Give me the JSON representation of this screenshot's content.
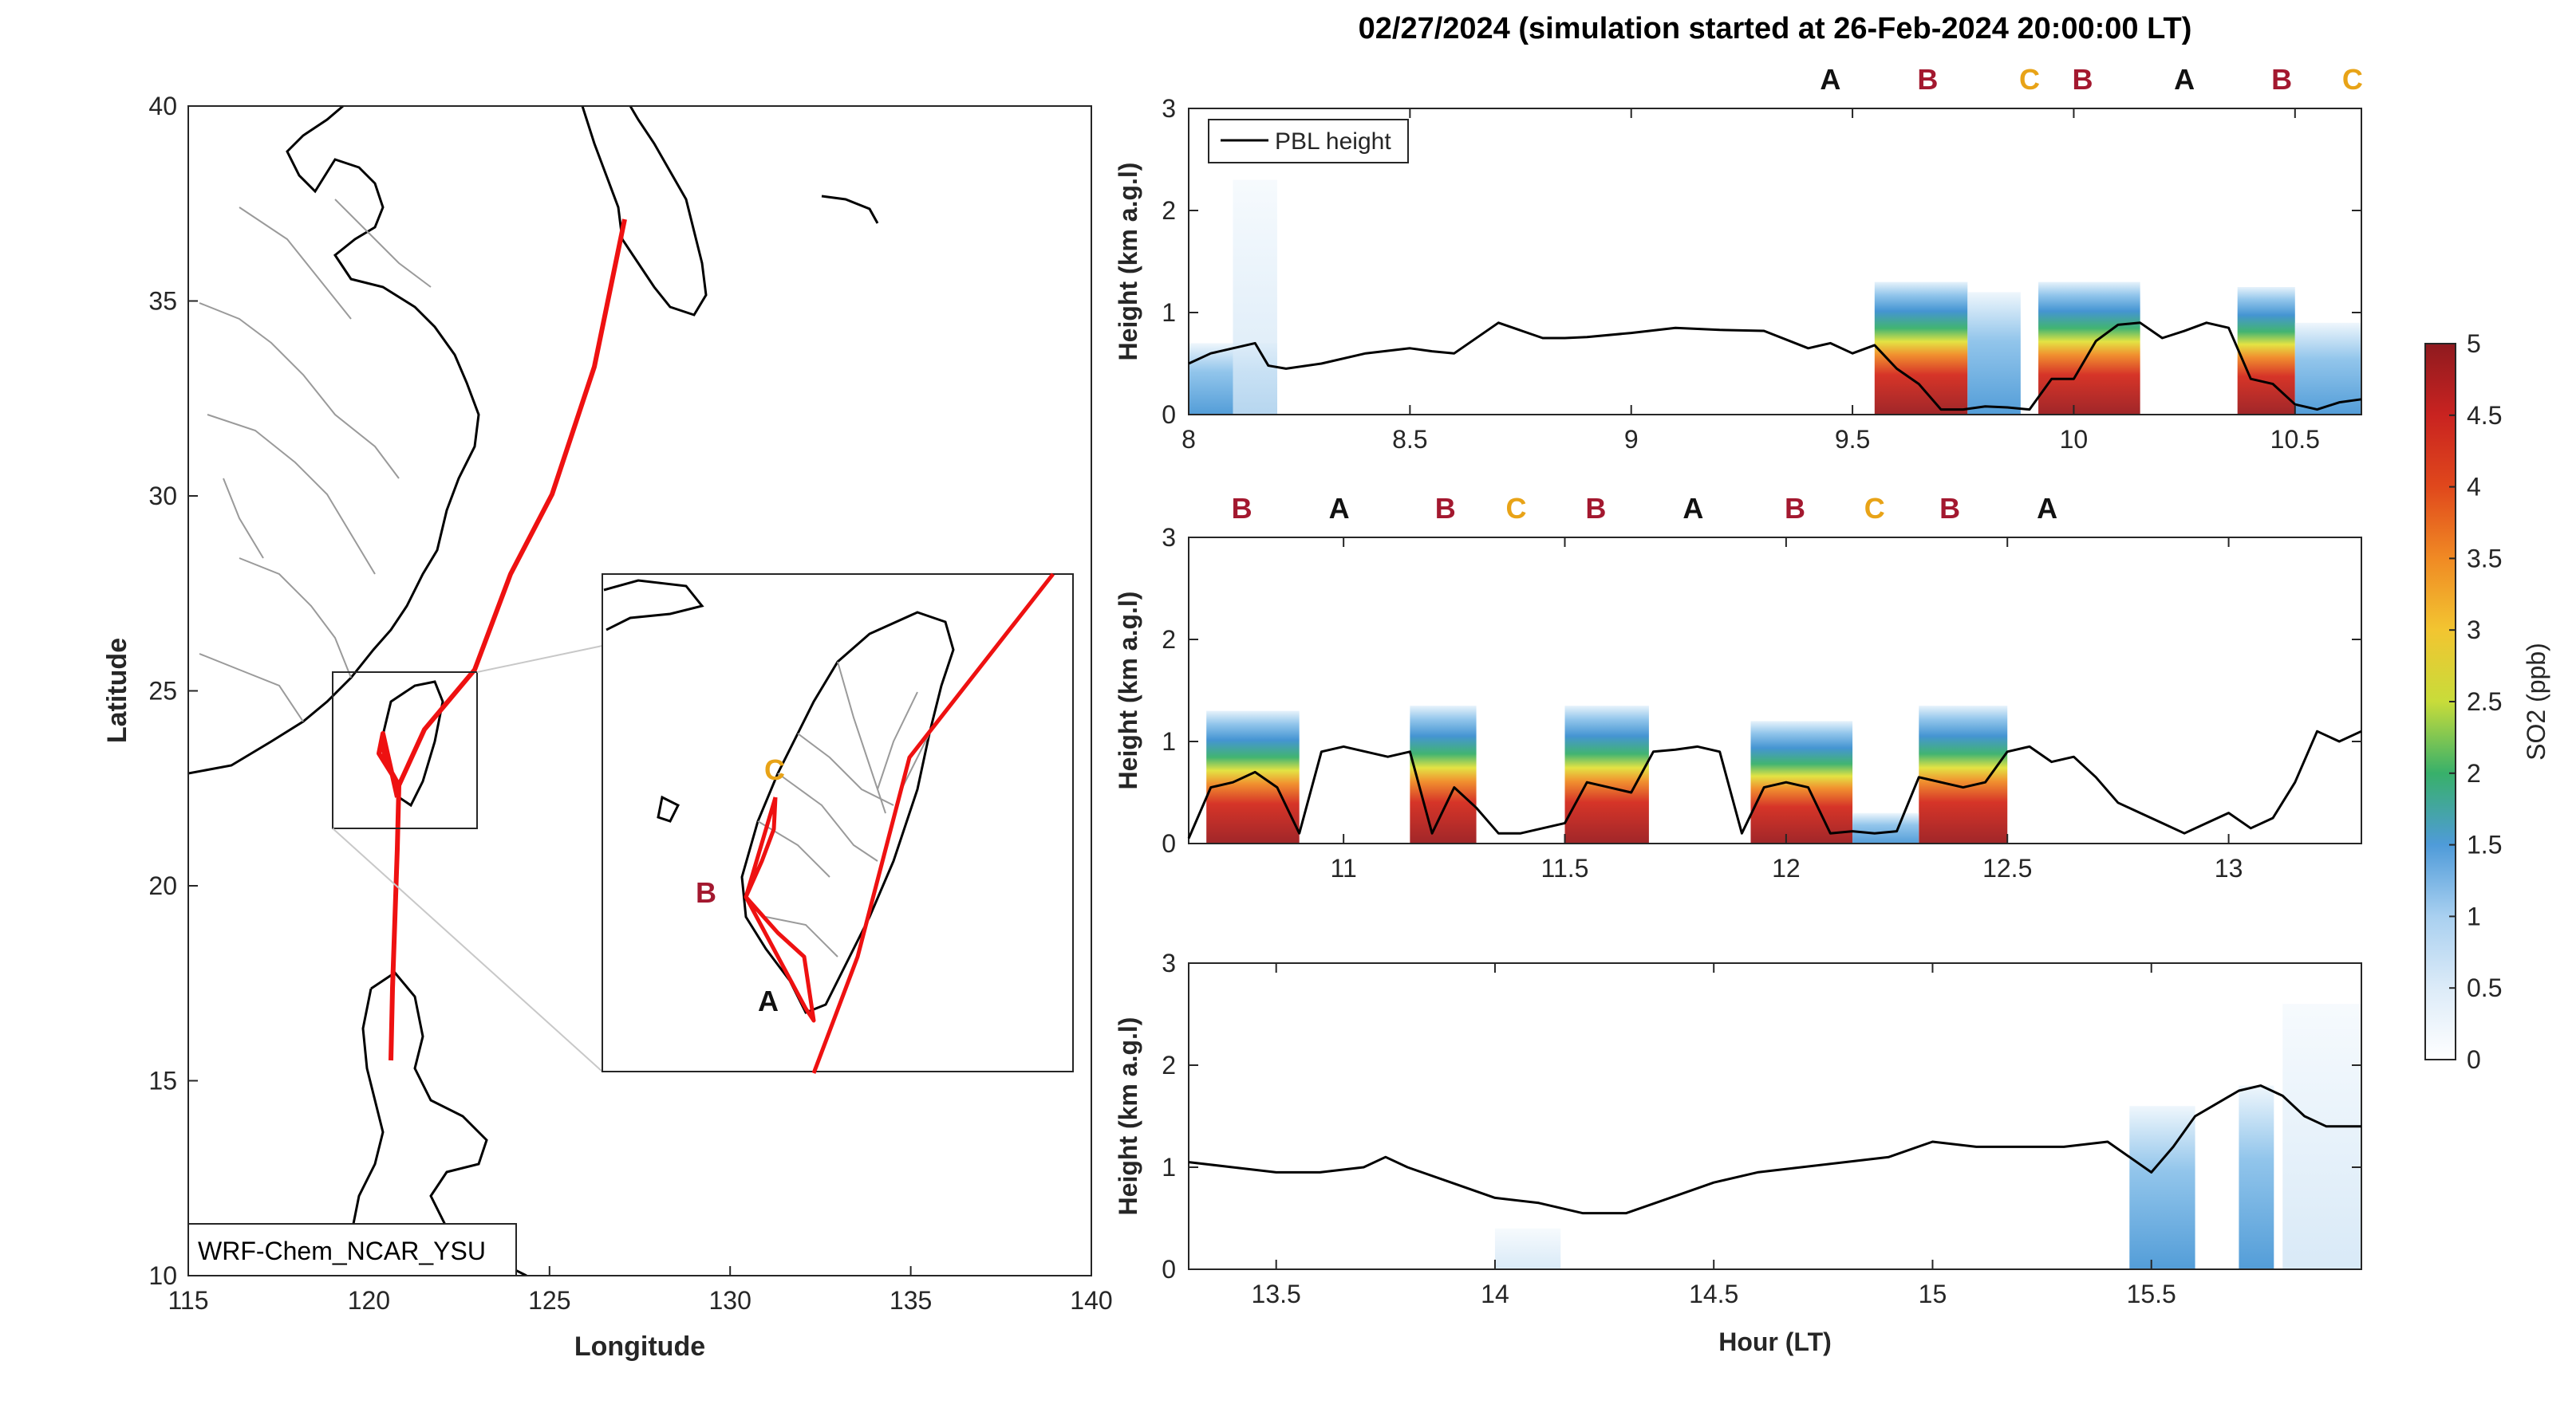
{
  "colors": {
    "A": "#111111",
    "B": "#a3182f",
    "C": "#e8a317",
    "track": "#ee1111",
    "pbl": "#000000",
    "colormap": [
      "#ffffff",
      "#cfe6f7",
      "#6fb0e3",
      "#3b8fd0",
      "#38b06a",
      "#e2e23a",
      "#f08a24",
      "#e0281c",
      "#9b1b1e"
    ]
  },
  "map": {
    "model_label": "WRF-Chem_NCAR_YSU",
    "xlabel": "Longitude",
    "ylabel": "Latitude",
    "xlim": [
      115,
      140
    ],
    "ylim": [
      10,
      40
    ],
    "xticks": [
      "115",
      "120",
      "125",
      "130",
      "135",
      "140"
    ],
    "yticks": [
      "10",
      "15",
      "20",
      "25",
      "30",
      "35",
      "40"
    ],
    "zoom_box": {
      "lon": [
        119,
        123
      ],
      "lat": [
        21.5,
        26
      ]
    },
    "inset_labels": [
      "C",
      "B",
      "A"
    ]
  },
  "chart_data": [
    {
      "type": "heatmap",
      "title": "02/27/2024 (simulation started at 26-Feb-2024 20:00:00 LT)",
      "ylabel": "Height (km a.g.l)",
      "xlim": [
        8,
        10.65
      ],
      "ylim": [
        0,
        3
      ],
      "xticks": [
        "8",
        "8.5",
        "9",
        "9.5",
        "10",
        "10.5"
      ],
      "yticks": [
        "0",
        "1",
        "2",
        "3"
      ],
      "legend": [
        "PBL height"
      ],
      "legend_position": "top-left",
      "site_labels": [
        {
          "text": "A",
          "x": 9.45
        },
        {
          "text": "B",
          "x": 9.67
        },
        {
          "text": "C",
          "x": 9.9
        },
        {
          "text": "B",
          "x": 10.02
        },
        {
          "text": "A",
          "x": 10.25
        },
        {
          "text": "B",
          "x": 10.47
        },
        {
          "text": "C",
          "x": 10.63
        }
      ],
      "pbl_height": {
        "x": [
          8,
          8.05,
          8.1,
          8.15,
          8.18,
          8.22,
          8.3,
          8.4,
          8.5,
          8.55,
          8.6,
          8.7,
          8.8,
          8.85,
          8.9,
          9.0,
          9.1,
          9.2,
          9.3,
          9.4,
          9.45,
          9.5,
          9.55,
          9.6,
          9.65,
          9.7,
          9.75,
          9.8,
          9.85,
          9.9,
          9.95,
          10.0,
          10.05,
          10.1,
          10.15,
          10.2,
          10.25,
          10.3,
          10.35,
          10.4,
          10.45,
          10.5,
          10.55,
          10.6,
          10.65
        ],
        "y": [
          0.5,
          0.6,
          0.65,
          0.7,
          0.48,
          0.45,
          0.5,
          0.6,
          0.65,
          0.62,
          0.6,
          0.9,
          0.75,
          0.75,
          0.76,
          0.8,
          0.85,
          0.83,
          0.82,
          0.65,
          0.7,
          0.6,
          0.68,
          0.45,
          0.3,
          0.05,
          0.05,
          0.08,
          0.07,
          0.05,
          0.35,
          0.35,
          0.72,
          0.88,
          0.9,
          0.75,
          0.82,
          0.9,
          0.85,
          0.35,
          0.3,
          0.1,
          0.05,
          0.12,
          0.15
        ]
      },
      "so2_patches": [
        {
          "x": [
            8.0,
            8.2
          ],
          "ytop": 0.7,
          "peak": 1.0
        },
        {
          "x": [
            8.1,
            8.2
          ],
          "ytop": 2.3,
          "peak": 0.3
        },
        {
          "x": [
            9.55,
            9.76
          ],
          "ytop": 1.3,
          "peak": 5.0
        },
        {
          "x": [
            9.76,
            9.88
          ],
          "ytop": 1.2,
          "peak": 1.0
        },
        {
          "x": [
            9.92,
            10.15
          ],
          "ytop": 1.3,
          "peak": 5.0
        },
        {
          "x": [
            10.37,
            10.5
          ],
          "ytop": 1.25,
          "peak": 5.0
        },
        {
          "x": [
            10.5,
            10.65
          ],
          "ytop": 0.9,
          "peak": 1.0
        }
      ]
    },
    {
      "type": "heatmap",
      "ylabel": "Height (km a.g.l)",
      "xlim": [
        10.65,
        13.3
      ],
      "ylim": [
        0,
        3
      ],
      "xticks": [
        "11",
        "11.5",
        "12",
        "12.5",
        "13"
      ],
      "yticks": [
        "0",
        "1",
        "2",
        "3"
      ],
      "site_labels": [
        {
          "text": "B",
          "x": 10.77
        },
        {
          "text": "A",
          "x": 10.99
        },
        {
          "text": "B",
          "x": 11.23
        },
        {
          "text": "C",
          "x": 11.39
        },
        {
          "text": "B",
          "x": 11.57
        },
        {
          "text": "A",
          "x": 11.79
        },
        {
          "text": "B",
          "x": 12.02
        },
        {
          "text": "C",
          "x": 12.2
        },
        {
          "text": "B",
          "x": 12.37
        },
        {
          "text": "A",
          "x": 12.59
        }
      ],
      "pbl_height": {
        "x": [
          10.65,
          10.7,
          10.75,
          10.8,
          10.85,
          10.9,
          10.95,
          11.0,
          11.05,
          11.1,
          11.15,
          11.2,
          11.25,
          11.3,
          11.35,
          11.4,
          11.45,
          11.5,
          11.55,
          11.6,
          11.65,
          11.7,
          11.75,
          11.8,
          11.85,
          11.9,
          11.95,
          12.0,
          12.05,
          12.1,
          12.15,
          12.2,
          12.25,
          12.3,
          12.35,
          12.4,
          12.45,
          12.5,
          12.55,
          12.6,
          12.65,
          12.7,
          12.75,
          12.8,
          12.85,
          12.9,
          12.95,
          13.0,
          13.05,
          13.1,
          13.15,
          13.2,
          13.25,
          13.3
        ],
        "y": [
          0.05,
          0.55,
          0.6,
          0.7,
          0.55,
          0.1,
          0.9,
          0.95,
          0.9,
          0.85,
          0.9,
          0.1,
          0.55,
          0.35,
          0.1,
          0.1,
          0.15,
          0.2,
          0.6,
          0.55,
          0.5,
          0.9,
          0.92,
          0.95,
          0.9,
          0.1,
          0.55,
          0.6,
          0.55,
          0.1,
          0.12,
          0.1,
          0.12,
          0.65,
          0.6,
          0.55,
          0.6,
          0.9,
          0.95,
          0.8,
          0.85,
          0.65,
          0.4,
          0.3,
          0.2,
          0.1,
          0.2,
          0.3,
          0.15,
          0.25,
          0.6,
          1.1,
          1.0,
          1.1
        ]
      },
      "so2_patches": [
        {
          "x": [
            10.69,
            10.9
          ],
          "ytop": 1.3,
          "peak": 5.0
        },
        {
          "x": [
            11.15,
            11.3
          ],
          "ytop": 1.35,
          "peak": 5.0
        },
        {
          "x": [
            11.5,
            11.69
          ],
          "ytop": 1.35,
          "peak": 5.0
        },
        {
          "x": [
            11.92,
            12.15
          ],
          "ytop": 1.2,
          "peak": 5.0
        },
        {
          "x": [
            12.3,
            12.5
          ],
          "ytop": 1.35,
          "peak": 5.0
        },
        {
          "x": [
            12.15,
            12.3
          ],
          "ytop": 0.3,
          "peak": 1.2
        }
      ]
    },
    {
      "type": "heatmap",
      "ylabel": "Height (km a.g.l)",
      "xlabel": "Hour (LT)",
      "xlim": [
        13.3,
        15.98
      ],
      "ylim": [
        0,
        3
      ],
      "xticks": [
        "13.5",
        "14",
        "14.5",
        "15",
        "15.5"
      ],
      "yticks": [
        "0",
        "1",
        "2",
        "3"
      ],
      "pbl_height": {
        "x": [
          13.3,
          13.4,
          13.5,
          13.6,
          13.7,
          13.75,
          13.8,
          13.9,
          14.0,
          14.1,
          14.2,
          14.3,
          14.4,
          14.5,
          14.6,
          14.7,
          14.8,
          14.9,
          15.0,
          15.1,
          15.2,
          15.3,
          15.4,
          15.5,
          15.55,
          15.6,
          15.7,
          15.75,
          15.8,
          15.85,
          15.9,
          15.98
        ],
        "y": [
          1.05,
          1.0,
          0.95,
          0.95,
          1.0,
          1.1,
          1.0,
          0.85,
          0.7,
          0.65,
          0.55,
          0.55,
          0.7,
          0.85,
          0.95,
          1.0,
          1.05,
          1.1,
          1.25,
          1.2,
          1.2,
          1.2,
          1.25,
          0.95,
          1.2,
          1.5,
          1.75,
          1.8,
          1.7,
          1.5,
          1.4,
          1.4
        ]
      },
      "so2_patches": [
        {
          "x": [
            14.0,
            14.15
          ],
          "ytop": 0.4,
          "peak": 0.3
        },
        {
          "x": [
            15.45,
            15.6
          ],
          "ytop": 1.6,
          "peak": 1.5
        },
        {
          "x": [
            15.7,
            15.78
          ],
          "ytop": 1.8,
          "peak": 1.4
        },
        {
          "x": [
            15.8,
            15.98
          ],
          "ytop": 2.6,
          "peak": 0.6
        }
      ]
    }
  ],
  "colorbar": {
    "label": "SO2 (ppb)",
    "range": [
      0,
      5
    ],
    "ticks": [
      "0",
      "0.5",
      "1",
      "1.5",
      "2",
      "2.5",
      "3",
      "3.5",
      "4",
      "4.5",
      "5"
    ]
  }
}
